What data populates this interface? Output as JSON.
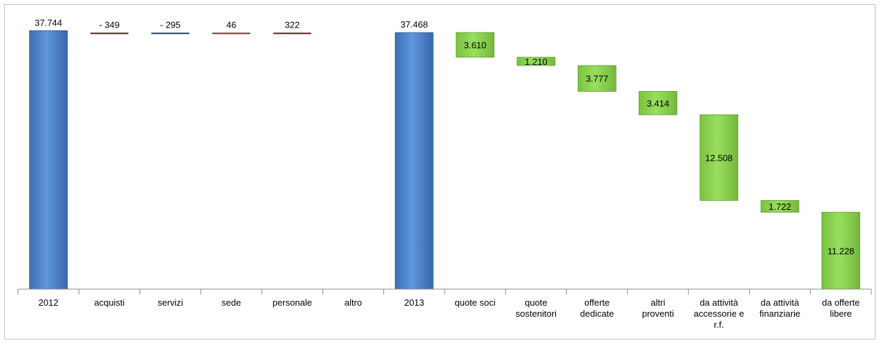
{
  "chart_data": {
    "type": "waterfall",
    "title": "",
    "xlabel": "",
    "ylabel": "",
    "ylim": [
      0,
      40000
    ],
    "categories": [
      "2012",
      "acquisti",
      "servizi",
      "sede",
      "personale",
      "altro",
      "2013",
      "quote soci",
      "quote sostenitori",
      "offerte dedicate",
      "altri proventi",
      "da attività accessorie e r.f.",
      "da attività finanziarie",
      "da offerte libere"
    ],
    "category_lines": [
      [
        "2012"
      ],
      [
        "acquisti"
      ],
      [
        "servizi"
      ],
      [
        "sede"
      ],
      [
        "personale"
      ],
      [
        "altro"
      ],
      [
        "2013"
      ],
      [
        "quote soci"
      ],
      [
        "quote",
        "sostenitori"
      ],
      [
        "offerte",
        "dedicate"
      ],
      [
        "altri",
        "proventi"
      ],
      [
        "da attività",
        "accessorie e",
        "r.f."
      ],
      [
        "da attività",
        "finanziarie"
      ],
      [
        "da offerte",
        "libere"
      ]
    ],
    "bars": [
      {
        "kind": "total",
        "base": 0,
        "value": 37744,
        "label": "37.744",
        "color": "#4f86d0"
      },
      {
        "kind": "marker",
        "level": 37344,
        "value": -349,
        "label": "- 349",
        "color": "#5a1a1a"
      },
      {
        "kind": "marker",
        "level": 37344,
        "value": -295,
        "label": "- 295",
        "color": "#1f3b5a"
      },
      {
        "kind": "marker",
        "level": 37344,
        "value": 46,
        "label": "46",
        "color": "#8b2a2a"
      },
      {
        "kind": "marker",
        "level": 37344,
        "value": 322,
        "label": "322",
        "color": "#5a1a1a"
      },
      {
        "kind": "empty",
        "value": null,
        "label": ""
      },
      {
        "kind": "total",
        "base": 0,
        "value": 37468,
        "label": "37.468",
        "color": "#4a7cc0"
      },
      {
        "kind": "decrease",
        "top": 37468,
        "value": 3610,
        "label": "3.610",
        "color": "#8ed454"
      },
      {
        "kind": "decrease",
        "top": 33858,
        "value": 1210,
        "label": "1.210",
        "color": "#8ed454"
      },
      {
        "kind": "decrease",
        "top": 32648,
        "value": 3777,
        "label": "3.777",
        "color": "#8ed454"
      },
      {
        "kind": "decrease",
        "top": 28871,
        "value": 3414,
        "label": "3.414",
        "color": "#8ed454"
      },
      {
        "kind": "decrease",
        "top": 25457,
        "value": 12508,
        "label": "12.508",
        "color": "#8ed454"
      },
      {
        "kind": "decrease",
        "top": 12949,
        "value": 1722,
        "label": "1.722",
        "color": "#8ed454"
      },
      {
        "kind": "decrease",
        "top": 11227,
        "value": 11228,
        "label": "11.228",
        "color": "#8ed454"
      }
    ]
  }
}
